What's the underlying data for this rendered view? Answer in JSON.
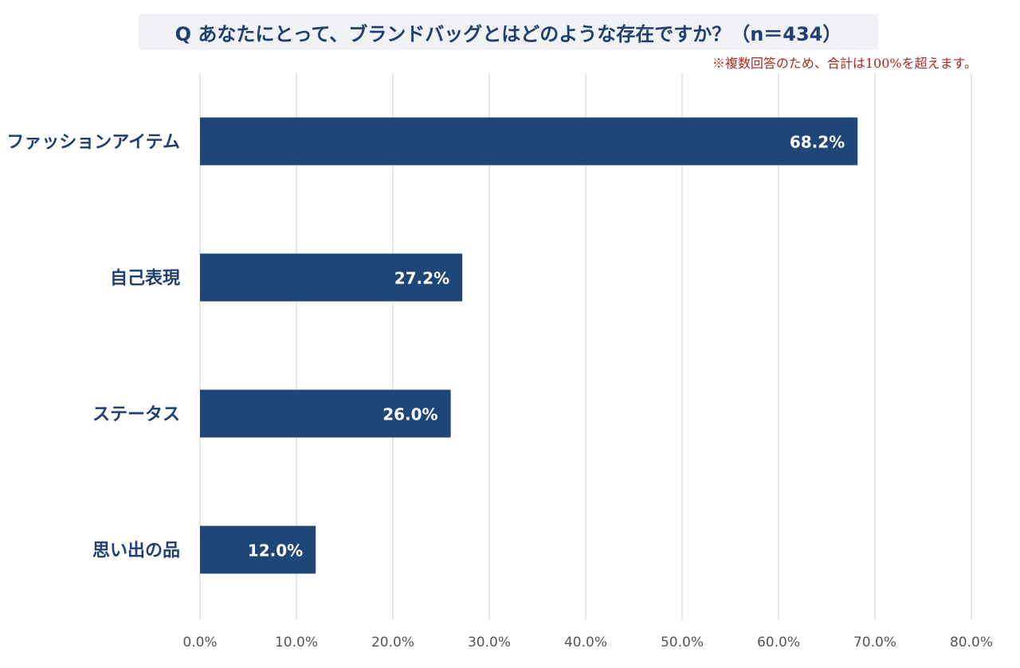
{
  "chart_data": {
    "type": "bar",
    "orientation": "horizontal",
    "title": "Q あなたにとって、ブランドバッグとはどのような存在ですか？（n＝434）",
    "subtitle": "※複数回答のため、合計は100%を超えます。",
    "categories": [
      "ファッションアイテム",
      "自己表現",
      "ステータス",
      "思い出の品"
    ],
    "values": [
      68.2,
      27.2,
      26.0,
      12.0
    ],
    "value_labels": [
      "68.2%",
      "27.2%",
      "26.0%",
      "12.0%"
    ],
    "xlim": [
      0,
      80
    ],
    "ticks": [
      0,
      10,
      20,
      30,
      40,
      50,
      60,
      70,
      80
    ],
    "tick_labels": [
      "0.0%",
      "10.0%",
      "20.0%",
      "30.0%",
      "40.0%",
      "50.0%",
      "60.0%",
      "70.0%",
      "80.0%"
    ],
    "grid": true,
    "bar_color": "#1f4678",
    "grid_color": "#d0d0d0"
  }
}
